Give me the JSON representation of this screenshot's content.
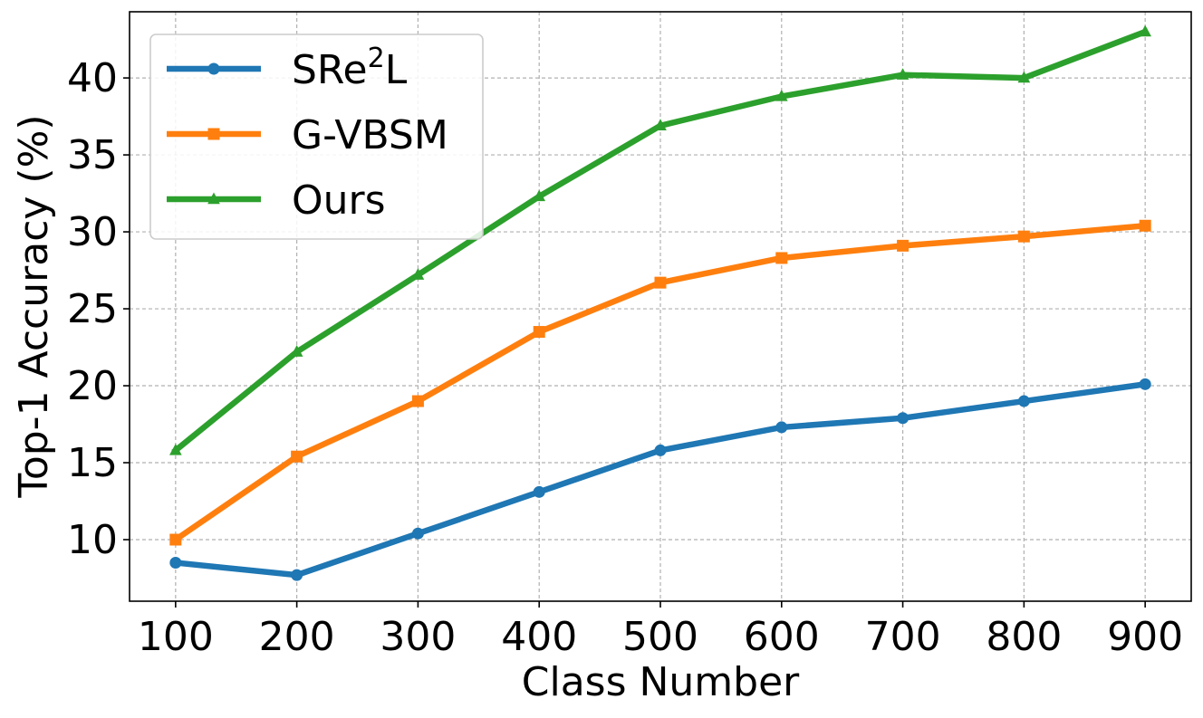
{
  "chart_data": {
    "type": "line",
    "title": "",
    "xlabel": "Class Number",
    "ylabel": "Top-1 Accuracy (%)",
    "x": [
      100,
      200,
      300,
      400,
      500,
      600,
      700,
      800,
      900
    ],
    "x_ticks": [
      "100",
      "200",
      "300",
      "400",
      "500",
      "600",
      "700",
      "800",
      "900"
    ],
    "xlim": [
      62,
      938
    ],
    "y_ticks": [
      10,
      15,
      20,
      25,
      30,
      35,
      40
    ],
    "y_tick_labels": [
      "10",
      "15",
      "20",
      "25",
      "30",
      "35",
      "40"
    ],
    "ylim": [
      6,
      44.3
    ],
    "grid": true,
    "legend_position": "top-left",
    "series": [
      {
        "name": "SRe",
        "name_sup": "2",
        "name_suffix": "L",
        "color": "#1f77b4",
        "marker": "circle",
        "values": [
          8.5,
          7.7,
          10.4,
          13.1,
          15.8,
          17.3,
          17.9,
          19.0,
          20.1
        ]
      },
      {
        "name": "G-VBSM",
        "color": "#ff7f0e",
        "marker": "square",
        "values": [
          10.0,
          15.4,
          19.0,
          23.5,
          26.7,
          28.3,
          29.1,
          29.7,
          30.4
        ]
      },
      {
        "name": "Ours",
        "color": "#2ca02c",
        "marker": "triangle",
        "values": [
          15.8,
          22.2,
          27.2,
          32.3,
          36.9,
          38.8,
          40.2,
          40.0,
          43.0
        ]
      }
    ]
  }
}
